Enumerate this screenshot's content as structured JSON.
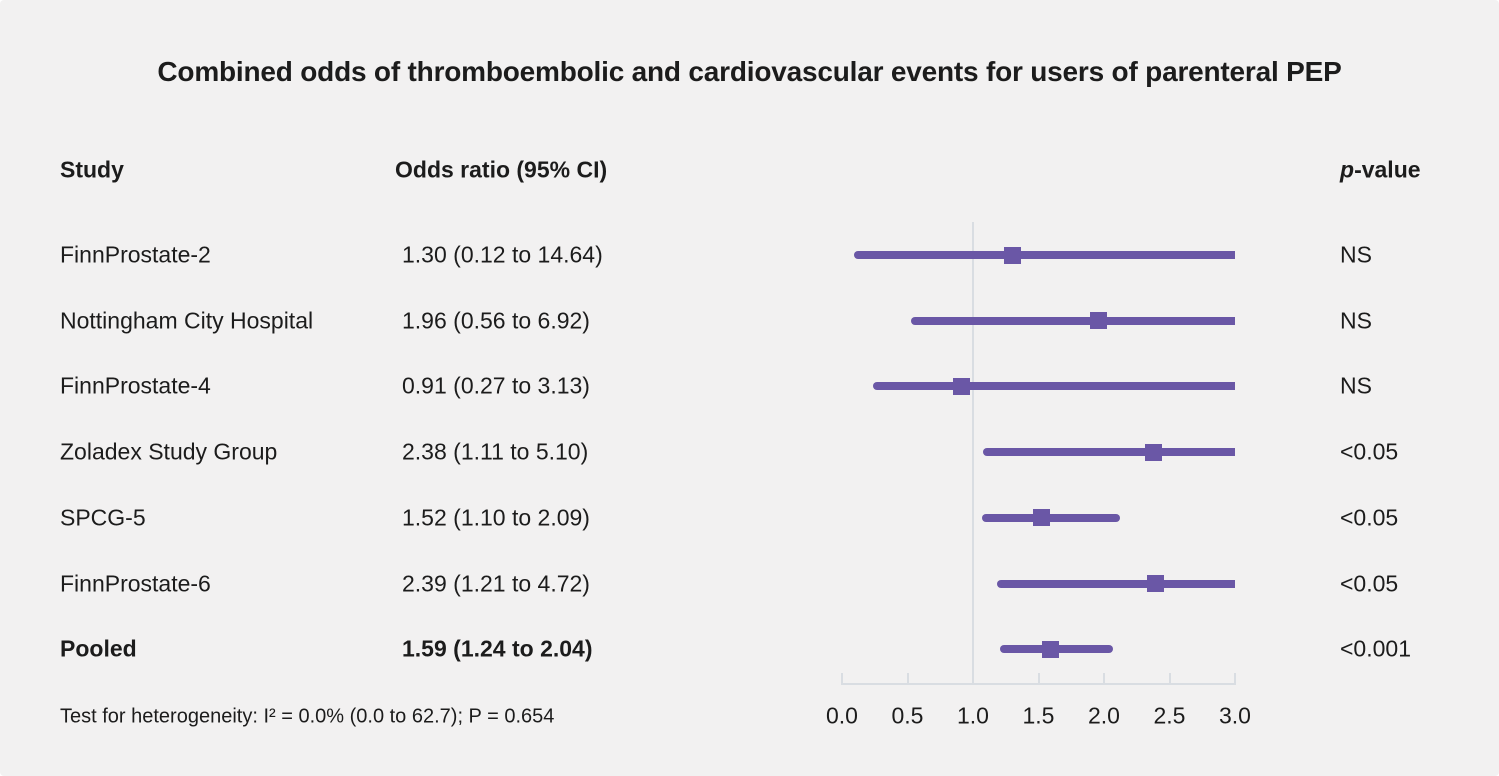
{
  "title": "Combined odds of thromboembolic and cardiovascular events for users of parenteral PEP",
  "columns": {
    "study": "Study",
    "odds": "Odds ratio (95% CI)",
    "p_italic": "p",
    "p_rest": "-value"
  },
  "colors": {
    "background": "#f2f1f1",
    "text": "#1c1c1c",
    "bar": "#6a57a6",
    "marker": "#6a57a6",
    "axis_line": "#d9dde2",
    "reference_line": "#d9dde2"
  },
  "chart_data": {
    "type": "forest",
    "title": "Combined odds of thromboembolic and cardiovascular events for users of parenteral PEP",
    "xlabel": "",
    "axis": {
      "min": 0.0,
      "max": 3.0,
      "tick_step": 0.5,
      "tick_values": [
        0.0,
        0.5,
        1.0,
        1.5,
        2.0,
        2.5,
        3.0
      ],
      "tick_labels": [
        "0.0",
        "0.5",
        "1.0",
        "1.5",
        "2.0",
        "2.5",
        "3.0"
      ],
      "reference_line": 1.0,
      "grid": false
    },
    "rows": [
      {
        "study": "FinnProstate-2",
        "or": 1.3,
        "ci_low": 0.12,
        "ci_high": 14.64,
        "or_label": "1.30 (0.12 to 14.64)",
        "p": "NS",
        "bold": false
      },
      {
        "study": "Nottingham City Hospital",
        "or": 1.96,
        "ci_low": 0.56,
        "ci_high": 6.92,
        "or_label": "1.96 (0.56 to 6.92)",
        "p": "NS",
        "bold": false
      },
      {
        "study": "FinnProstate-4",
        "or": 0.91,
        "ci_low": 0.27,
        "ci_high": 3.13,
        "or_label": "0.91 (0.27 to 3.13)",
        "p": "NS",
        "bold": false
      },
      {
        "study": "Zoladex Study Group",
        "or": 2.38,
        "ci_low": 1.11,
        "ci_high": 5.1,
        "or_label": "2.38 (1.11 to 5.10)",
        "p": "<0.05",
        "bold": false
      },
      {
        "study": "SPCG-5",
        "or": 1.52,
        "ci_low": 1.1,
        "ci_high": 2.09,
        "or_label": "1.52 (1.10 to 2.09)",
        "p": "<0.05",
        "bold": false
      },
      {
        "study": "FinnProstate-6",
        "or": 2.39,
        "ci_low": 1.21,
        "ci_high": 4.72,
        "or_label": "2.39 (1.21 to 4.72)",
        "p": "<0.05",
        "bold": false
      },
      {
        "study": "Pooled",
        "or": 1.59,
        "ci_low": 1.24,
        "ci_high": 2.04,
        "or_label": "1.59 (1.24 to 2.04)",
        "p": "<0.001",
        "bold": true
      }
    ],
    "heterogeneity": "Test for heterogeneity: I² = 0.0% (0.0 to 62.7); P = 0.654"
  }
}
